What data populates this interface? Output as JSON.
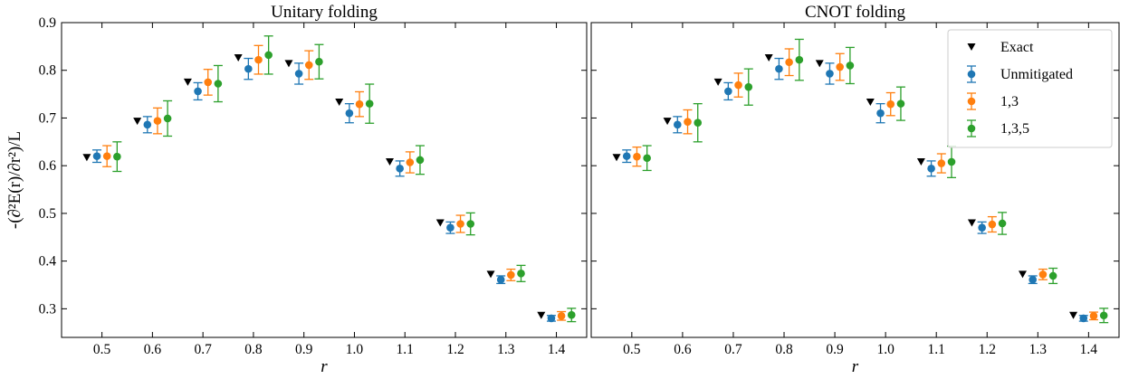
{
  "chart_data": [
    {
      "type": "scatter",
      "title": "Unitary folding",
      "xlabel": "r",
      "ylabel": "-(∂²E(r)/∂r²)/L",
      "xlim": [
        0.42,
        1.46
      ],
      "ylim": [
        0.24,
        0.9
      ],
      "xticks": [
        "0.5",
        "0.6",
        "0.7",
        "0.8",
        "0.9",
        "1.0",
        "1.1",
        "1.2",
        "1.3",
        "1.4"
      ],
      "yticks": [
        "0.3",
        "0.4",
        "0.5",
        "0.6",
        "0.7",
        "0.8",
        "0.9"
      ],
      "x": [
        0.5,
        0.6,
        0.7,
        0.8,
        0.9,
        1.0,
        1.1,
        1.2,
        1.3,
        1.4
      ],
      "series": [
        {
          "name": "Exact",
          "marker": "triangle-down",
          "color": "#000000",
          "offset": -0.03,
          "values": [
            0.617,
            0.693,
            0.775,
            0.826,
            0.814,
            0.733,
            0.608,
            0.48,
            0.372,
            0.286
          ],
          "err": []
        },
        {
          "name": "Unmitigated",
          "marker": "circle",
          "color": "#1f77b4",
          "offset": -0.01,
          "values": [
            0.62,
            0.686,
            0.756,
            0.803,
            0.793,
            0.71,
            0.594,
            0.47,
            0.361,
            0.28
          ],
          "err": [
            0.013,
            0.017,
            0.018,
            0.022,
            0.022,
            0.02,
            0.016,
            0.012,
            0.008,
            0.006
          ]
        },
        {
          "name": "1,3",
          "marker": "circle",
          "color": "#ff7f0e",
          "offset": 0.01,
          "values": [
            0.62,
            0.694,
            0.775,
            0.822,
            0.811,
            0.729,
            0.607,
            0.478,
            0.371,
            0.285
          ],
          "err": [
            0.022,
            0.027,
            0.027,
            0.03,
            0.03,
            0.026,
            0.022,
            0.018,
            0.012,
            0.009
          ]
        },
        {
          "name": "1,3,5",
          "marker": "circle",
          "color": "#2ca02c",
          "offset": 0.03,
          "values": [
            0.619,
            0.699,
            0.772,
            0.832,
            0.818,
            0.73,
            0.612,
            0.478,
            0.374,
            0.287
          ],
          "err": [
            0.031,
            0.037,
            0.038,
            0.04,
            0.036,
            0.041,
            0.03,
            0.023,
            0.017,
            0.014
          ]
        }
      ],
      "legend": null
    },
    {
      "type": "scatter",
      "title": "CNOT folding",
      "xlabel": "r",
      "ylabel": "",
      "xlim": [
        0.42,
        1.46
      ],
      "ylim": [
        0.24,
        0.9
      ],
      "xticks": [
        "0.5",
        "0.6",
        "0.7",
        "0.8",
        "0.9",
        "1.0",
        "1.1",
        "1.2",
        "1.3",
        "1.4"
      ],
      "yticks": [],
      "x": [
        0.5,
        0.6,
        0.7,
        0.8,
        0.9,
        1.0,
        1.1,
        1.2,
        1.3,
        1.4
      ],
      "series": [
        {
          "name": "Exact",
          "marker": "triangle-down",
          "color": "#000000",
          "offset": -0.03,
          "values": [
            0.617,
            0.693,
            0.775,
            0.826,
            0.814,
            0.733,
            0.608,
            0.48,
            0.372,
            0.286
          ],
          "err": []
        },
        {
          "name": "Unmitigated",
          "marker": "circle",
          "color": "#1f77b4",
          "offset": -0.01,
          "values": [
            0.62,
            0.686,
            0.756,
            0.803,
            0.793,
            0.71,
            0.594,
            0.47,
            0.361,
            0.28
          ],
          "err": [
            0.013,
            0.017,
            0.018,
            0.022,
            0.022,
            0.02,
            0.016,
            0.012,
            0.008,
            0.006
          ]
        },
        {
          "name": "1,3",
          "marker": "circle",
          "color": "#ff7f0e",
          "offset": 0.01,
          "values": [
            0.619,
            0.692,
            0.769,
            0.817,
            0.807,
            0.729,
            0.605,
            0.477,
            0.372,
            0.285
          ],
          "err": [
            0.02,
            0.025,
            0.025,
            0.028,
            0.028,
            0.024,
            0.02,
            0.016,
            0.011,
            0.008
          ]
        },
        {
          "name": "1,3,5",
          "marker": "circle",
          "color": "#2ca02c",
          "offset": 0.03,
          "values": [
            0.616,
            0.69,
            0.765,
            0.822,
            0.81,
            0.73,
            0.608,
            0.479,
            0.369,
            0.286
          ],
          "err": [
            0.026,
            0.04,
            0.038,
            0.043,
            0.038,
            0.035,
            0.033,
            0.023,
            0.016,
            0.015
          ]
        }
      ],
      "legend": {
        "position": "top-right",
        "entries": [
          "Exact",
          "Unmitigated",
          "1,3",
          "1,3,5"
        ]
      }
    }
  ]
}
